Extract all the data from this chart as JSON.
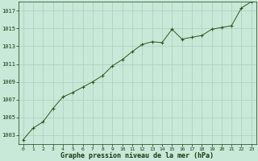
{
  "title": "Graphe pression niveau de la mer (hPa)",
  "x_values": [
    0,
    1,
    2,
    3,
    4,
    5,
    6,
    7,
    8,
    9,
    10,
    11,
    12,
    13,
    14,
    15,
    16,
    17,
    18,
    19,
    20,
    21,
    22,
    23
  ],
  "y_values": [
    1002.5,
    1003.8,
    1004.5,
    1006.0,
    1007.3,
    1007.8,
    1008.4,
    1009.0,
    1009.7,
    1010.8,
    1011.5,
    1012.4,
    1013.2,
    1013.5,
    1013.4,
    1014.9,
    1013.8,
    1014.0,
    1014.2,
    1014.9,
    1015.1,
    1015.3,
    1017.3,
    1018.0
  ],
  "ylim": [
    1002,
    1018
  ],
  "xlim": [
    -0.5,
    23.5
  ],
  "yticks": [
    1003,
    1005,
    1007,
    1009,
    1011,
    1013,
    1015,
    1017
  ],
  "xticks": [
    0,
    1,
    2,
    3,
    4,
    5,
    6,
    7,
    8,
    9,
    10,
    11,
    12,
    13,
    14,
    15,
    16,
    17,
    18,
    19,
    20,
    21,
    22,
    23
  ],
  "line_color": "#2d5a1e",
  "marker_color": "#2d5a1e",
  "bg_color": "#c8e8d8",
  "grid_color": "#aacfbe",
  "title_color": "#1a3a14",
  "tick_color": "#1a3a14",
  "fig_width": 3.2,
  "fig_height": 2.0,
  "dpi": 100
}
